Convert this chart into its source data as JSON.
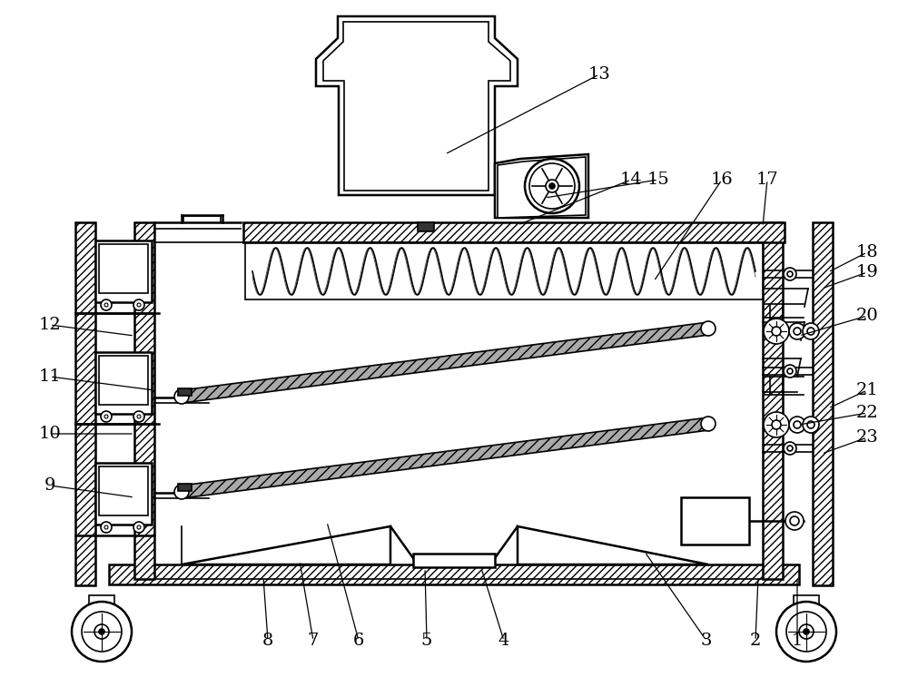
{
  "bg_color": "#ffffff",
  "line_color": "#000000",
  "annotations": [
    [
      "13",
      660,
      82,
      490,
      170
    ],
    [
      "14",
      695,
      198,
      570,
      248
    ],
    [
      "15",
      725,
      198,
      600,
      218
    ],
    [
      "16",
      795,
      198,
      720,
      310
    ],
    [
      "17",
      845,
      198,
      840,
      250
    ],
    [
      "18",
      955,
      278,
      912,
      300
    ],
    [
      "19",
      955,
      300,
      905,
      318
    ],
    [
      "20",
      955,
      348,
      880,
      370
    ],
    [
      "21",
      955,
      430,
      912,
      450
    ],
    [
      "22",
      955,
      455,
      880,
      468
    ],
    [
      "23",
      955,
      482,
      905,
      500
    ],
    [
      "12",
      55,
      358,
      148,
      370
    ],
    [
      "11",
      55,
      415,
      170,
      430
    ],
    [
      "10",
      55,
      478,
      148,
      478
    ],
    [
      "9",
      55,
      535,
      148,
      548
    ],
    [
      "8",
      295,
      706,
      290,
      636
    ],
    [
      "7",
      345,
      706,
      330,
      618
    ],
    [
      "6",
      395,
      706,
      360,
      575
    ],
    [
      "5",
      470,
      706,
      468,
      626
    ],
    [
      "4",
      555,
      706,
      530,
      626
    ],
    [
      "3",
      778,
      706,
      710,
      608
    ],
    [
      "2",
      832,
      706,
      835,
      636
    ],
    [
      "1",
      878,
      706,
      878,
      636
    ]
  ]
}
